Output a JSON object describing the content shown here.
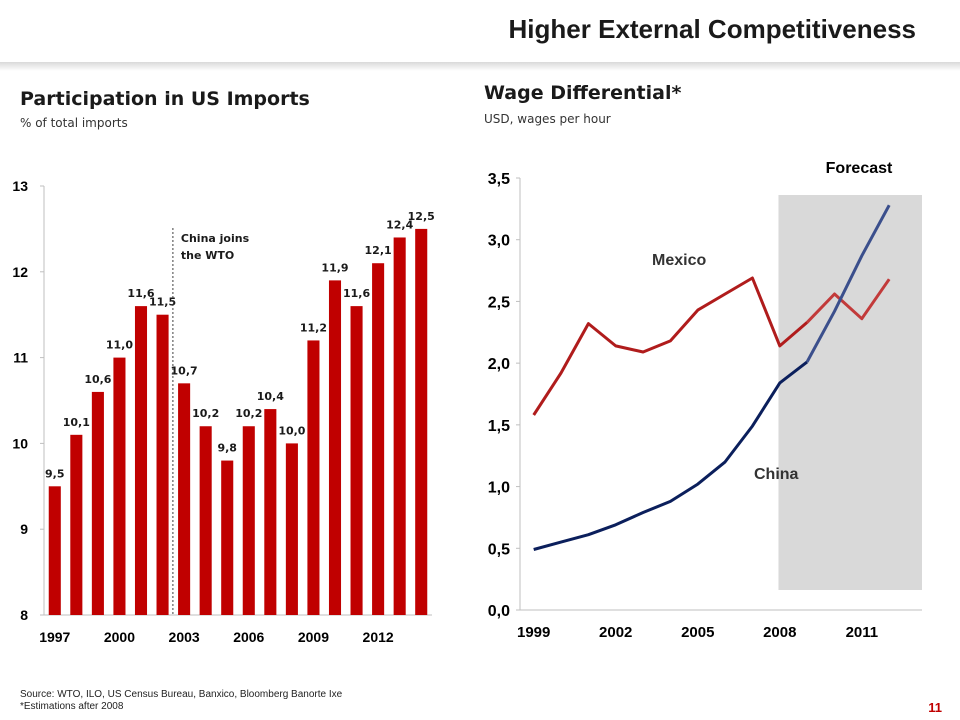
{
  "slide": {
    "title": "Higher External Competitiveness",
    "source": "Source: WTO, ILO, US Census Bureau, Banxico, Bloomberg Banorte Ixe",
    "footnote": "*Estimations after 2008",
    "page_number": "11"
  },
  "colors": {
    "bar": "#c00000",
    "mexico_line": "#b01c1c",
    "china_line": "#0b1f5c",
    "china_forecast_line": "#3b4f8c",
    "mexico_forecast_line": "#c23a3a",
    "forecast_band": "#d9d9d9"
  },
  "chart_data": [
    {
      "type": "bar",
      "title": "Participation in US Imports",
      "subtitle": "% of total imports",
      "categories": [
        1997,
        1998,
        1999,
        2000,
        2001,
        2002,
        2003,
        2004,
        2005,
        2006,
        2007,
        2008,
        2009,
        2010,
        2011,
        2012,
        2013,
        2014
      ],
      "values": [
        9.5,
        10.1,
        10.6,
        11.0,
        11.6,
        11.5,
        10.7,
        10.2,
        9.8,
        10.2,
        10.4,
        10.0,
        11.2,
        11.9,
        11.6,
        12.1,
        12.4,
        12.5
      ],
      "data_labels": [
        "9,5",
        "10,1",
        "10,6",
        "11,0",
        "11,6",
        "11,5",
        "10,7",
        "10,2",
        "9,8",
        "10,2",
        "10,4",
        "10,0",
        "11,2",
        "11,9",
        "11,6",
        "12,1",
        "12,4",
        "12,5"
      ],
      "ylim": [
        8,
        13
      ],
      "yticks": [
        8,
        9,
        10,
        11,
        12,
        13
      ],
      "ytick_labels": [
        "8",
        "9",
        "10",
        "11",
        "12",
        "13"
      ],
      "xtick_labels": [
        "1997",
        "2000",
        "2003",
        "2006",
        "2009",
        "2012"
      ],
      "xtick_years": [
        1997,
        2000,
        2003,
        2006,
        2009,
        2012
      ],
      "annotation": {
        "text_line1": "China joins",
        "text_line2": "the WTO",
        "after_year": 2002
      },
      "grid": false,
      "legend": "none"
    },
    {
      "type": "line",
      "title": "Wage Differential*",
      "subtitle": "USD, wages per hour",
      "x": [
        1999,
        2000,
        2001,
        2002,
        2003,
        2004,
        2005,
        2006,
        2007,
        2008,
        2009,
        2010,
        2011,
        2012
      ],
      "series": [
        {
          "name": "Mexico",
          "values": [
            1.58,
            1.92,
            2.32,
            2.14,
            2.09,
            2.18,
            2.43,
            2.56,
            2.69,
            2.14,
            2.33,
            2.56,
            2.36,
            2.68
          ]
        },
        {
          "name": "China",
          "values": [
            0.49,
            0.55,
            0.61,
            0.69,
            0.79,
            0.88,
            1.02,
            1.2,
            1.49,
            1.84,
            2.01,
            2.42,
            2.87,
            3.28
          ]
        }
      ],
      "forecast": {
        "label": "Forecast",
        "from": 2008.5,
        "to": 2012.5
      },
      "ylim": [
        0,
        3.5
      ],
      "yticks": [
        0,
        0.5,
        1.0,
        1.5,
        2.0,
        2.5,
        3.0,
        3.5
      ],
      "ytick_labels": [
        "0,0",
        "0,5",
        "1,0",
        "1,5",
        "2,0",
        "2,5",
        "3,0",
        "3,5"
      ],
      "xtick_labels": [
        "1999",
        "2002",
        "2005",
        "2008",
        "2011"
      ],
      "xtick_years": [
        1999,
        2002,
        2005,
        2008,
        2011
      ],
      "grid": false,
      "legend": "inline"
    }
  ]
}
